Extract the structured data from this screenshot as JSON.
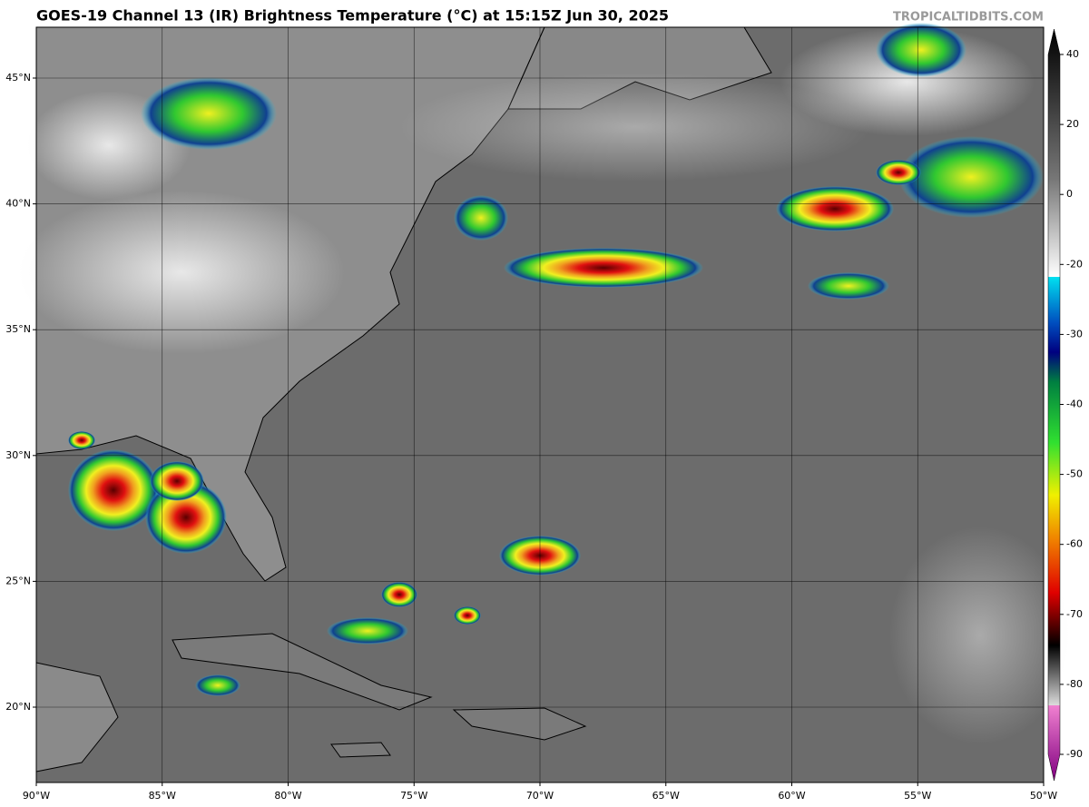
{
  "title": "GOES-19 Channel 13 (IR) Brightness Temperature (°C) at 15:15Z Jun 30, 2025",
  "watermark": "TROPICALTIDBITS.COM",
  "map": {
    "lat_ticks": [
      {
        "value": 20,
        "label": "20°N"
      },
      {
        "value": 25,
        "label": "25°N"
      },
      {
        "value": 30,
        "label": "30°N"
      },
      {
        "value": 35,
        "label": "35°N"
      },
      {
        "value": 40,
        "label": "40°N"
      },
      {
        "value": 45,
        "label": "45°N"
      }
    ],
    "lon_ticks": [
      {
        "value": -90,
        "label": "90°W"
      },
      {
        "value": -85,
        "label": "85°W"
      },
      {
        "value": -80,
        "label": "80°W"
      },
      {
        "value": -75,
        "label": "75°W"
      },
      {
        "value": -70,
        "label": "70°W"
      },
      {
        "value": -65,
        "label": "65°W"
      },
      {
        "value": -60,
        "label": "60°W"
      },
      {
        "value": -55,
        "label": "55°W"
      },
      {
        "value": -50,
        "label": "50°W"
      }
    ]
  },
  "colorbar": {
    "ticks": [
      40,
      20,
      0,
      -20,
      -30,
      -40,
      -50,
      -60,
      -70,
      -80,
      -90
    ]
  }
}
